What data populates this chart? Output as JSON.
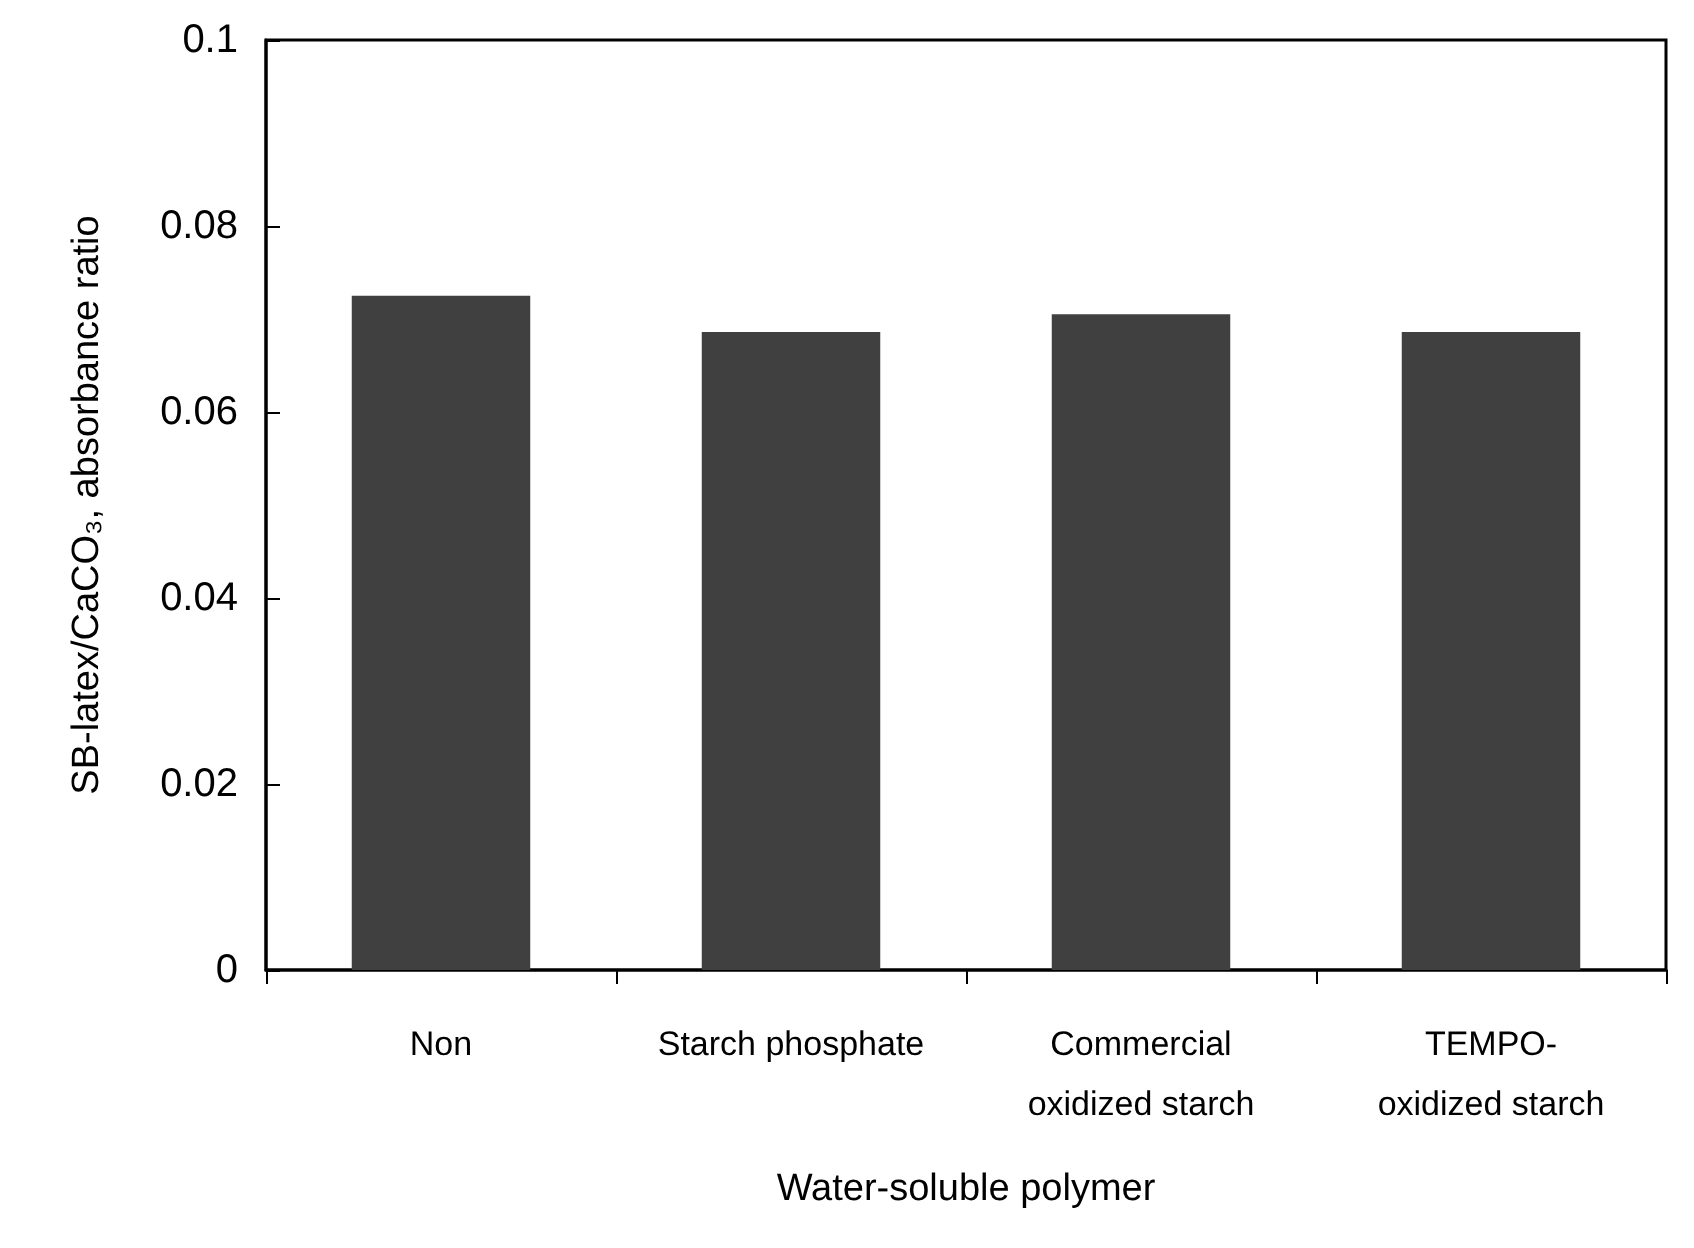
{
  "chart_data": {
    "type": "bar",
    "categories": [
      "Non",
      "Starch phosphate",
      "Commercial\noxidized starch",
      "TEMPO-\noxidized starch"
    ],
    "values": [
      0.0725,
      0.0686,
      0.0705,
      0.0686
    ],
    "color": "#404040",
    "xlabel": "Water-soluble polymer",
    "ylabel": "SB-latex/CaCO₃, absorbance ratio",
    "ylim": [
      0,
      0.1
    ],
    "yticks": [
      0,
      0.02,
      0.04,
      0.06,
      0.08,
      0.1
    ]
  }
}
